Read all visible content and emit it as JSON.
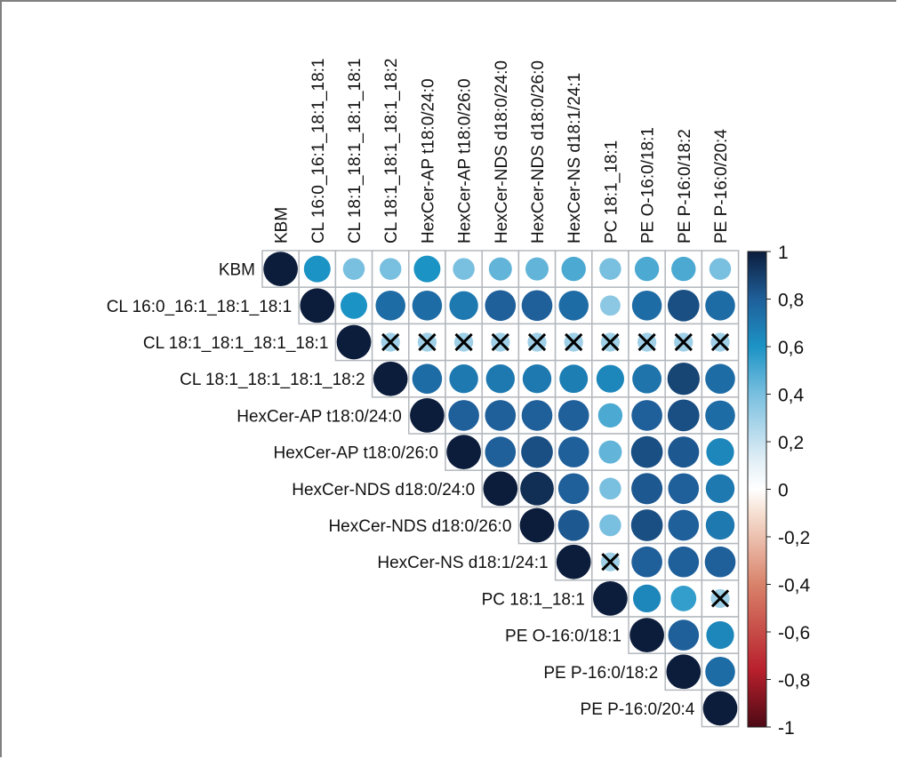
{
  "chart_data": {
    "type": "heatmap",
    "subtype": "correlogram-upper-circles",
    "title": "",
    "variables": [
      "KBM",
      "CL 16:0_16:1_18:1_18:1",
      "CL 18:1_18:1_18:1_18:1",
      "CL 18:1_18:1_18:1_18:2",
      "HexCer-AP t18:0/24:0",
      "HexCer-AP t18:0/26:0",
      "HexCer-NDS d18:0/24:0",
      "HexCer-NDS d18:0/26:0",
      "HexCer-NS d18:1/24:1",
      "PC 18:1_18:1",
      "PE O-16:0/18:1",
      "PE P-16:0/18:2",
      "PE P-16:0/20:4"
    ],
    "matrix_upper": [
      [
        1,
        0.6,
        0.4,
        0.4,
        0.6,
        0.4,
        0.45,
        0.45,
        0.5,
        0.4,
        0.5,
        0.5,
        0.4
      ],
      [
        1,
        0.6,
        0.75,
        0.75,
        0.7,
        0.8,
        0.8,
        0.75,
        0.35,
        0.75,
        0.85,
        0.75
      ],
      [
        1,
        0.3,
        0.3,
        0.3,
        0.3,
        0.3,
        0.3,
        0.3,
        0.3,
        0.3,
        0.3
      ],
      [
        1,
        0.75,
        0.7,
        0.7,
        0.7,
        0.68,
        0.65,
        0.72,
        0.88,
        0.75
      ],
      [
        1,
        0.8,
        0.8,
        0.8,
        0.8,
        0.5,
        0.8,
        0.85,
        0.75
      ],
      [
        1,
        0.8,
        0.85,
        0.8,
        0.45,
        0.85,
        0.82,
        0.65
      ],
      [
        1,
        0.95,
        0.8,
        0.4,
        0.82,
        0.8,
        0.7
      ],
      [
        1,
        0.82,
        0.4,
        0.85,
        0.8,
        0.7
      ],
      [
        1,
        0.3,
        0.8,
        0.8,
        0.8
      ],
      [
        1,
        0.65,
        0.55,
        0.3
      ],
      [
        1,
        0.8,
        0.65
      ],
      [
        1,
        0.75
      ],
      [
        1
      ]
    ],
    "non_significant_marked_x": [
      [
        2,
        3
      ],
      [
        2,
        4
      ],
      [
        2,
        5
      ],
      [
        2,
        6
      ],
      [
        2,
        7
      ],
      [
        2,
        8
      ],
      [
        2,
        9
      ],
      [
        2,
        10
      ],
      [
        2,
        11
      ],
      [
        2,
        12
      ],
      [
        8,
        9
      ],
      [
        9,
        12
      ]
    ],
    "colorbar": {
      "range": [
        -1,
        1
      ],
      "ticks": [
        "1",
        "0,8",
        "0,6",
        "0,4",
        "0,2",
        "0",
        "-0,2",
        "-0,4",
        "-0,6",
        "-0,8",
        "-1"
      ],
      "tick_values": [
        1,
        0.8,
        0.6,
        0.4,
        0.2,
        0,
        -0.2,
        -0.4,
        -0.6,
        -0.8,
        -1
      ],
      "placement": "right"
    },
    "colors": {
      "pos_strong": "#0e2a52",
      "pos_mid": "#1f78b4",
      "pos_light": "#43a4d3",
      "neutral": "#ffffff",
      "neg_mid": "#d6604d",
      "neg_strong": "#5a0c14",
      "grid": "#b3b8bd",
      "cross": "#000000"
    }
  }
}
